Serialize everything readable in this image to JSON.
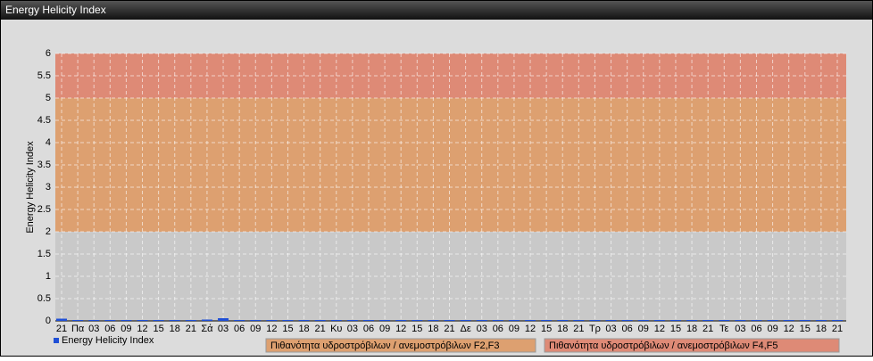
{
  "chart_data": {
    "type": "bar",
    "title": "Energy Helicity Index",
    "y_label": "Energy Helicity Index",
    "categories": [
      "21",
      "Πα",
      "03",
      "06",
      "09",
      "12",
      "15",
      "18",
      "21",
      "Σά",
      "03",
      "06",
      "09",
      "12",
      "15",
      "18",
      "21",
      "Κυ",
      "03",
      "06",
      "09",
      "12",
      "15",
      "18",
      "21",
      "Δε",
      "03",
      "06",
      "09",
      "12",
      "15",
      "18",
      "21",
      "Τρ",
      "03",
      "06",
      "09",
      "12",
      "15",
      "18",
      "21",
      "Τε",
      "03",
      "06",
      "09",
      "12",
      "15",
      "18",
      "21"
    ],
    "series": [
      {
        "name": "Energy Helicity Index",
        "color": "#1f4fd6",
        "values": [
          0.05,
          0.02,
          0.02,
          0.02,
          0.02,
          0.02,
          0.02,
          0.02,
          0.02,
          0.03,
          0.06,
          0.02,
          0.02,
          0.02,
          0.02,
          0.02,
          0.02,
          0.02,
          0.02,
          0.02,
          0.02,
          0.02,
          0.02,
          0.02,
          0.02,
          0.02,
          0.02,
          0.02,
          0.02,
          0.02,
          0.02,
          0.02,
          0.02,
          0.02,
          0.02,
          0.02,
          0.02,
          0.02,
          0.02,
          0.02,
          0.02,
          0.02,
          0.02,
          0.02,
          0.02,
          0.02,
          0.02,
          0.02,
          0.02
        ]
      }
    ],
    "bands": [
      {
        "from": 2,
        "to": 5,
        "color": "#dda070",
        "label": "Πιθανότητα υδροστρόβιλων / ανεμοστρόβιλων F2,F3"
      },
      {
        "from": 5,
        "to": 6,
        "color": "#de8a76",
        "label": "Πιθανότητα υδροστρόβιλων / ανεμοστρόβιλων F4,F5"
      }
    ],
    "ylim": [
      0,
      6
    ],
    "yticks": [
      0,
      0.5,
      1,
      1.5,
      2,
      2.5,
      3,
      3.5,
      4,
      4.5,
      5,
      5.5,
      6
    ],
    "grid": true
  }
}
